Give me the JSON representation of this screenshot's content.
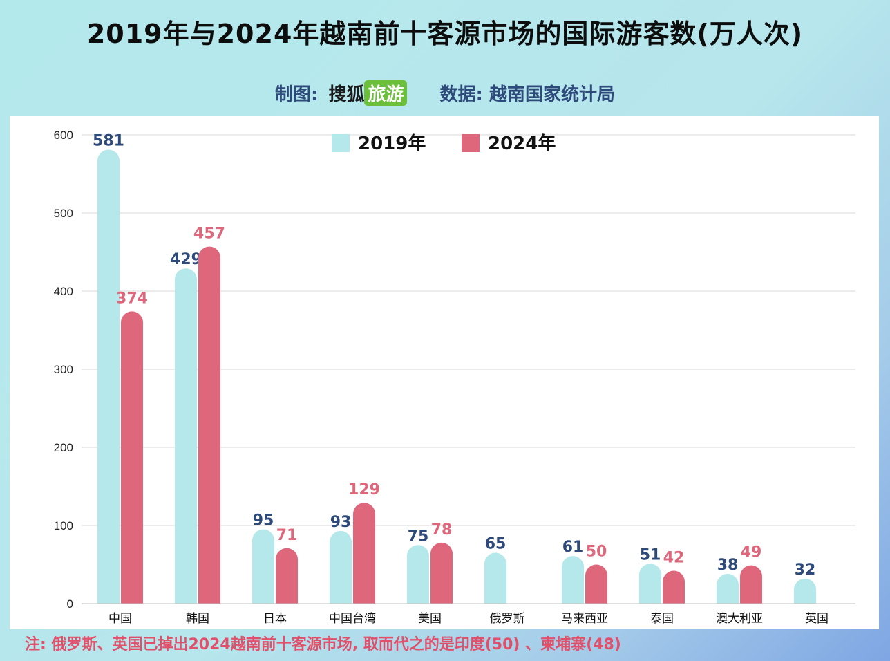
{
  "title": "2019年与2024年越南前十客源市场的国际游客数(万人次)",
  "credits": {
    "author_label": "制图:",
    "brand": "搜狐",
    "brand_box": "旅游",
    "source_label": "数据:",
    "source": "越南国家统计局"
  },
  "colors": {
    "y2019": "#b4e8ea",
    "y2024": "#df677c",
    "label2019": "#2d4a7a",
    "label2024": "#df677c"
  },
  "chart_data": {
    "type": "bar",
    "categories": [
      "中国",
      "韩国",
      "日本",
      "中国台湾",
      "美国",
      "俄罗斯",
      "马来西亚",
      "泰国",
      "澳大利亚",
      "英国"
    ],
    "series": [
      {
        "name": "2019年",
        "values": [
          581,
          429,
          95,
          93,
          75,
          65,
          61,
          51,
          38,
          32
        ]
      },
      {
        "name": "2024年",
        "values": [
          374,
          457,
          71,
          129,
          78,
          null,
          50,
          42,
          49,
          null
        ]
      }
    ],
    "ylim": [
      0,
      600
    ],
    "yticks": [
      0,
      100,
      200,
      300,
      400,
      500,
      600
    ],
    "grid": true,
    "legend_position": "top-center"
  },
  "note": "注: 俄罗斯、英国已掉出2024越南前十客源市场, 取而代之的是印度(50) 、柬埔寨(48)"
}
